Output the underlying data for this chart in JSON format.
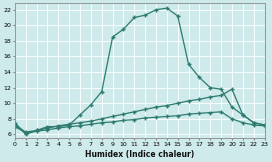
{
  "xlabel": "Humidex (Indice chaleur)",
  "bg_color": "#ceeaea",
  "line_color": "#2d7b6e",
  "grid_color": "#ffffff",
  "xlim": [
    0,
    23
  ],
  "ylim": [
    5.5,
    22.8
  ],
  "xticks": [
    0,
    1,
    2,
    3,
    4,
    5,
    6,
    7,
    8,
    9,
    10,
    11,
    12,
    13,
    14,
    15,
    16,
    17,
    18,
    19,
    20,
    21,
    22,
    23
  ],
  "yticks": [
    6,
    8,
    10,
    12,
    14,
    16,
    18,
    20,
    22
  ],
  "line1_x": [
    0,
    1,
    2,
    3,
    4,
    5,
    6,
    7,
    8,
    9,
    10,
    11,
    12,
    13,
    14,
    15,
    16,
    17,
    18,
    19,
    20,
    21,
    22,
    23
  ],
  "line1_y": [
    7.5,
    6.0,
    6.5,
    7.0,
    7.0,
    7.2,
    8.5,
    9.8,
    11.5,
    18.5,
    19.5,
    21.0,
    21.3,
    22.0,
    22.2,
    21.2,
    15.0,
    13.3,
    12.0,
    11.8,
    9.5,
    8.5,
    7.5,
    7.2
  ],
  "line2_x": [
    0,
    1,
    2,
    3,
    4,
    5,
    6,
    7,
    8,
    9,
    10,
    11,
    12,
    13,
    14,
    15,
    16,
    17,
    18,
    19,
    20,
    21,
    22,
    23
  ],
  "line2_y": [
    7.2,
    6.3,
    6.5,
    6.8,
    7.1,
    7.3,
    7.5,
    7.7,
    8.0,
    8.3,
    8.6,
    8.9,
    9.2,
    9.5,
    9.7,
    10.0,
    10.3,
    10.5,
    10.8,
    11.0,
    11.8,
    8.5,
    7.5,
    7.2
  ],
  "line3_x": [
    0,
    1,
    2,
    3,
    4,
    5,
    6,
    7,
    8,
    9,
    10,
    11,
    12,
    13,
    14,
    15,
    16,
    17,
    18,
    19,
    20,
    21,
    22,
    23
  ],
  "line3_y": [
    7.0,
    6.2,
    6.4,
    6.6,
    6.8,
    7.0,
    7.1,
    7.3,
    7.5,
    7.6,
    7.8,
    7.9,
    8.1,
    8.2,
    8.3,
    8.4,
    8.6,
    8.7,
    8.8,
    8.9,
    8.0,
    7.5,
    7.2,
    7.1
  ]
}
